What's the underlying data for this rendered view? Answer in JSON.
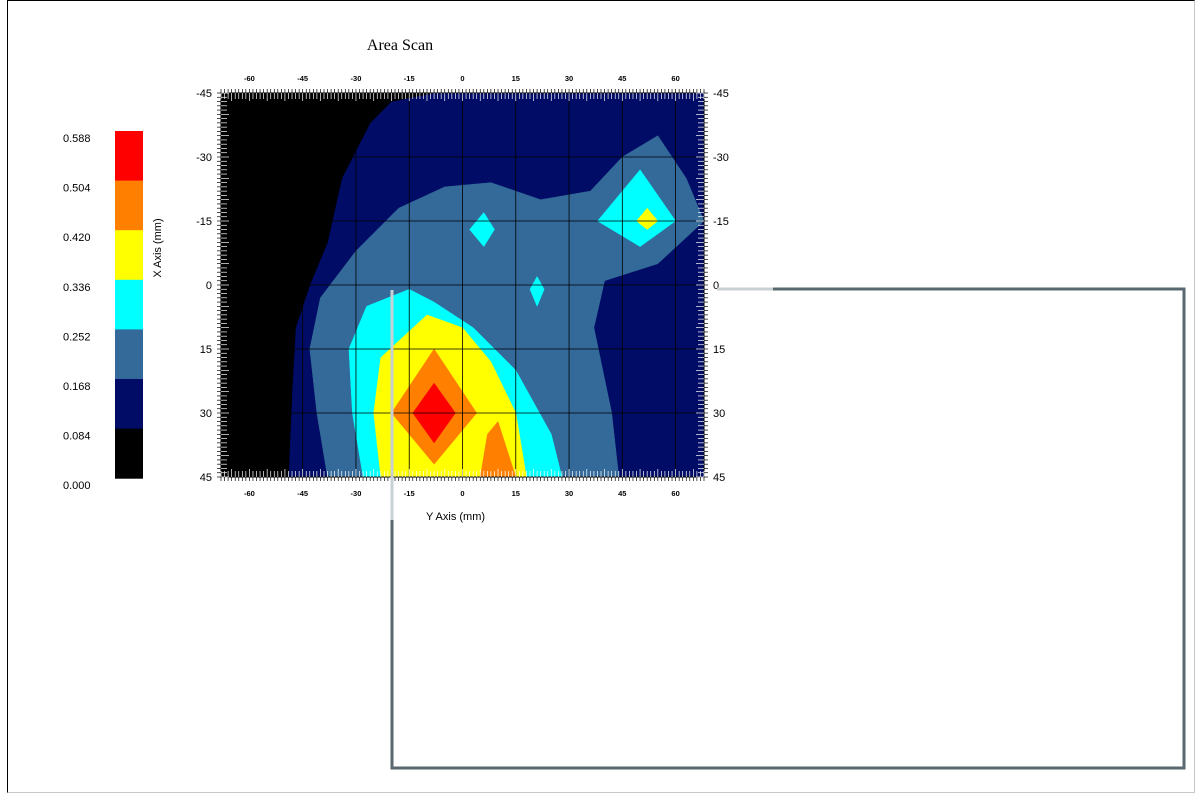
{
  "chart_data": {
    "type": "heatmap",
    "title": "Area Scan",
    "xlabel": "Y Axis (mm)",
    "ylabel": "X Axis (mm)",
    "x_ticks": [
      -60,
      -45,
      -30,
      -15,
      0,
      15,
      30,
      45,
      60
    ],
    "y_ticks": [
      -45,
      -30,
      -15,
      0,
      15,
      30,
      45
    ],
    "xlim": [
      -68,
      68
    ],
    "ylim": [
      -45,
      45
    ],
    "grid": true,
    "legend_position": "left",
    "color_levels": [
      "0.000",
      "0.084",
      "0.168",
      "0.252",
      "0.336",
      "0.420",
      "0.504",
      "0.588"
    ],
    "level_colors": [
      "#000000",
      "#000c66",
      "#336a99",
      "#00ffff",
      "#ffff00",
      "#ff8000",
      "#ff0000"
    ],
    "regions": [
      {
        "level": 1,
        "polygon": [
          [
            -63,
            -45
          ],
          [
            68,
            -45
          ],
          [
            68,
            45
          ],
          [
            -63,
            45
          ]
        ]
      },
      {
        "level": 0,
        "polygon": [
          [
            -68,
            -45
          ],
          [
            -8,
            -45
          ],
          [
            -20,
            -43
          ],
          [
            -26,
            -38
          ],
          [
            -34,
            -25
          ],
          [
            -38,
            -10
          ],
          [
            -43,
            0
          ],
          [
            -47,
            10
          ],
          [
            -48,
            25
          ],
          [
            -49,
            45
          ],
          [
            -68,
            45
          ]
        ]
      },
      {
        "level": 2,
        "polygon": [
          [
            -38,
            45
          ],
          [
            -41,
            30
          ],
          [
            -43,
            15
          ],
          [
            -40,
            3
          ],
          [
            -30,
            -8
          ],
          [
            -18,
            -18
          ],
          [
            -5,
            -23
          ],
          [
            8,
            -24
          ],
          [
            22,
            -20
          ],
          [
            36,
            -22
          ],
          [
            45,
            -30
          ],
          [
            55,
            -35
          ],
          [
            63,
            -25
          ],
          [
            68,
            -15
          ],
          [
            55,
            -5
          ],
          [
            40,
            -1
          ],
          [
            37,
            10
          ],
          [
            42,
            30
          ],
          [
            44,
            45
          ]
        ]
      },
      {
        "level": 3,
        "polygon": [
          [
            -28,
            45
          ],
          [
            -31,
            30
          ],
          [
            -32,
            15
          ],
          [
            -27,
            5
          ],
          [
            -15,
            1
          ],
          [
            -8,
            4
          ],
          [
            3,
            10
          ],
          [
            15,
            20
          ],
          [
            25,
            35
          ],
          [
            28,
            45
          ]
        ]
      },
      {
        "level": 3,
        "polygon": [
          [
            6,
            -17
          ],
          [
            9,
            -13
          ],
          [
            6,
            -9
          ],
          [
            2,
            -13
          ]
        ]
      },
      {
        "level": 3,
        "polygon": [
          [
            21,
            -2
          ],
          [
            23,
            1
          ],
          [
            21,
            5
          ],
          [
            19,
            1
          ]
        ]
      },
      {
        "level": 3,
        "polygon": [
          [
            50,
            -27
          ],
          [
            60,
            -15
          ],
          [
            50,
            -9
          ],
          [
            38,
            -15
          ]
        ]
      },
      {
        "level": 4,
        "polygon": [
          [
            -23,
            45
          ],
          [
            -25,
            30
          ],
          [
            -23,
            17
          ],
          [
            -10,
            7
          ],
          [
            0,
            10
          ],
          [
            8,
            18
          ],
          [
            15,
            30
          ],
          [
            18,
            45
          ]
        ]
      },
      {
        "level": 4,
        "polygon": [
          [
            52,
            -18
          ],
          [
            55,
            -15
          ],
          [
            52,
            -13
          ],
          [
            49,
            -15
          ]
        ]
      },
      {
        "level": 5,
        "polygon": [
          [
            -8,
            15
          ],
          [
            4,
            30
          ],
          [
            -8,
            42
          ],
          [
            -20,
            30
          ]
        ]
      },
      {
        "level": 5,
        "polygon": [
          [
            5,
            45
          ],
          [
            7,
            35
          ],
          [
            10,
            32
          ],
          [
            15,
            45
          ]
        ]
      },
      {
        "level": 6,
        "polygon": [
          [
            -8,
            23
          ],
          [
            -2,
            30
          ],
          [
            -8,
            37
          ],
          [
            -14,
            30
          ]
        ]
      }
    ]
  }
}
